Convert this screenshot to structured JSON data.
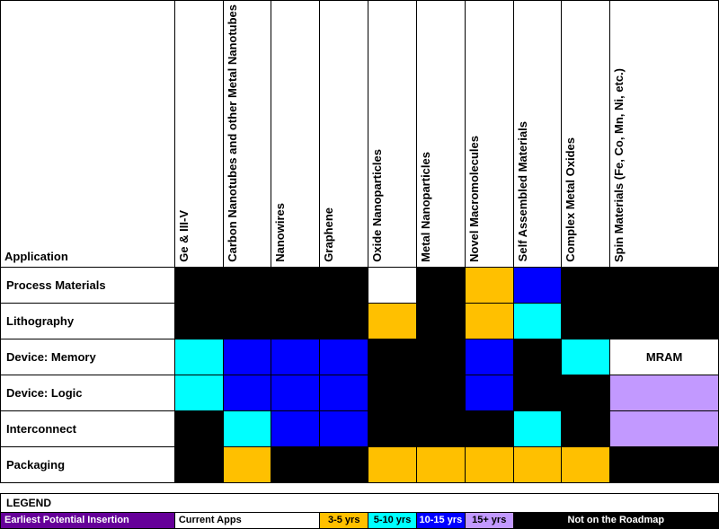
{
  "colors": {
    "black": "#000000",
    "white": "#ffffff",
    "cyan": "#00ffff",
    "blue": "#0000ff",
    "orange": "#ffc000",
    "violet": "#c299ff",
    "purple": "#660099"
  },
  "headers": {
    "application": "Application",
    "columns": [
      "Ge & III-V",
      "Carbon Nanotubes and other Metal Nanotubes",
      "Nanowires",
      "Graphene",
      "Oxide Nanoparticles",
      "Metal Nanoparticles",
      "Novel Macromolecules",
      "Self Assembled Materials",
      "Complex Metal Oxides",
      "Spin Materials (Fe, Co, Mn, Ni, etc.)"
    ]
  },
  "rows": [
    {
      "label": "Process Materials",
      "cells": [
        "black",
        "black",
        "black",
        "black",
        "white",
        "black",
        "orange",
        "blue",
        "black",
        "black"
      ]
    },
    {
      "label": "Lithography",
      "cells": [
        "black",
        "black",
        "black",
        "black",
        "orange",
        "black",
        "orange",
        "cyan",
        "black",
        "black"
      ]
    },
    {
      "label": "Device: Memory",
      "cells": [
        "cyan",
        "blue",
        "blue",
        "blue",
        "black",
        "black",
        "blue",
        "black",
        "cyan",
        "white-mram"
      ]
    },
    {
      "label": "Device: Logic",
      "cells": [
        "cyan",
        "blue",
        "blue",
        "blue",
        "black",
        "black",
        "blue",
        "black",
        "black",
        "violet"
      ]
    },
    {
      "label": "Interconnect",
      "cells": [
        "black",
        "cyan",
        "blue",
        "blue",
        "black",
        "black",
        "black",
        "cyan",
        "black",
        "violet"
      ]
    },
    {
      "label": "Packaging",
      "cells": [
        "black",
        "orange",
        "black",
        "black",
        "orange",
        "orange",
        "orange",
        "orange",
        "orange",
        "black"
      ]
    }
  ],
  "mram_label": "MRAM",
  "legend": {
    "title": "LEGEND",
    "row_label": "Earliest Potential Insertion",
    "items": [
      {
        "label": "Current Apps",
        "bg": "white",
        "fg": "#000000"
      },
      {
        "label": "3-5 yrs",
        "bg": "orange",
        "fg": "#000000"
      },
      {
        "label": "5-10 yrs",
        "bg": "cyan",
        "fg": "#000000"
      },
      {
        "label": "10-15 yrs",
        "bg": "blue",
        "fg": "#ffffff"
      },
      {
        "label": "15+ yrs",
        "bg": "violet",
        "fg": "#000000"
      },
      {
        "label": "Not on the Roadmap",
        "bg": "black",
        "fg": "#ffffff"
      }
    ]
  },
  "column_widths": {
    "app": 180,
    "narrow": 50,
    "last": 112
  }
}
